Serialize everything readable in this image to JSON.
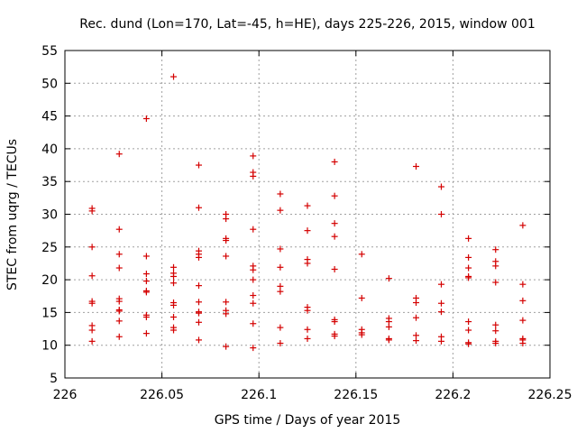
{
  "chart_data": {
    "type": "scatter",
    "title": "Rec. dund (Lon=170, Lat=-45, h=HE), days 225-226, 2015, window 001",
    "xlabel": "GPS time / Days of year 2015",
    "ylabel": "STEC from uqrg / TECUs",
    "xlim": [
      226,
      226.25
    ],
    "ylim": [
      5,
      55
    ],
    "x_ticks": [
      226,
      226.05,
      226.1,
      226.15,
      226.2,
      226.25
    ],
    "x_tick_labels": [
      "226",
      "226.05",
      "226.1",
      "226.15",
      "226.2",
      "226.25"
    ],
    "y_ticks": [
      5,
      10,
      15,
      20,
      25,
      30,
      35,
      40,
      45,
      50,
      55
    ],
    "y_tick_labels": [
      "5",
      "10",
      "15",
      "20",
      "25",
      "30",
      "35",
      "40",
      "45",
      "50",
      "55"
    ],
    "grid": true,
    "marker": "plus",
    "color": "#d40000",
    "series": [
      {
        "name": "STEC",
        "points": [
          [
            226.014,
            30.9
          ],
          [
            226.014,
            30.5
          ],
          [
            226.014,
            25.0
          ],
          [
            226.014,
            20.6
          ],
          [
            226.014,
            16.7
          ],
          [
            226.014,
            16.4
          ],
          [
            226.014,
            13.0
          ],
          [
            226.014,
            12.3
          ],
          [
            226.014,
            10.6
          ],
          [
            226.028,
            39.2
          ],
          [
            226.028,
            27.7
          ],
          [
            226.028,
            23.9
          ],
          [
            226.028,
            21.8
          ],
          [
            226.028,
            17.1
          ],
          [
            226.028,
            16.7
          ],
          [
            226.028,
            15.4
          ],
          [
            226.028,
            15.2
          ],
          [
            226.028,
            13.7
          ],
          [
            226.028,
            11.3
          ],
          [
            226.042,
            44.6
          ],
          [
            226.042,
            23.6
          ],
          [
            226.042,
            20.9
          ],
          [
            226.042,
            19.8
          ],
          [
            226.042,
            18.3
          ],
          [
            226.042,
            18.1
          ],
          [
            226.042,
            14.6
          ],
          [
            226.042,
            14.3
          ],
          [
            226.042,
            11.8
          ],
          [
            226.056,
            51.0
          ],
          [
            226.056,
            21.9
          ],
          [
            226.056,
            21.0
          ],
          [
            226.056,
            20.5
          ],
          [
            226.056,
            19.5
          ],
          [
            226.056,
            16.5
          ],
          [
            226.056,
            16.1
          ],
          [
            226.056,
            14.3
          ],
          [
            226.056,
            12.7
          ],
          [
            226.056,
            12.3
          ],
          [
            226.069,
            37.5
          ],
          [
            226.069,
            31.0
          ],
          [
            226.069,
            24.4
          ],
          [
            226.069,
            23.9
          ],
          [
            226.069,
            23.4
          ],
          [
            226.069,
            19.1
          ],
          [
            226.069,
            16.6
          ],
          [
            226.069,
            15.1
          ],
          [
            226.069,
            14.9
          ],
          [
            226.069,
            13.5
          ],
          [
            226.069,
            10.8
          ],
          [
            226.083,
            30.0
          ],
          [
            226.083,
            29.3
          ],
          [
            226.083,
            26.3
          ],
          [
            226.083,
            26.0
          ],
          [
            226.083,
            23.6
          ],
          [
            226.083,
            16.6
          ],
          [
            226.083,
            15.3
          ],
          [
            226.083,
            14.8
          ],
          [
            226.083,
            9.8
          ],
          [
            226.097,
            38.9
          ],
          [
            226.097,
            36.4
          ],
          [
            226.097,
            35.8
          ],
          [
            226.097,
            27.7
          ],
          [
            226.097,
            22.1
          ],
          [
            226.097,
            21.5
          ],
          [
            226.097,
            20.0
          ],
          [
            226.097,
            17.6
          ],
          [
            226.097,
            16.4
          ],
          [
            226.097,
            13.3
          ],
          [
            226.097,
            9.6
          ],
          [
            226.111,
            33.1
          ],
          [
            226.111,
            30.6
          ],
          [
            226.111,
            24.7
          ],
          [
            226.111,
            21.9
          ],
          [
            226.111,
            19.0
          ],
          [
            226.111,
            18.2
          ],
          [
            226.111,
            12.7
          ],
          [
            226.111,
            10.3
          ],
          [
            226.125,
            31.3
          ],
          [
            226.125,
            27.5
          ],
          [
            226.125,
            23.1
          ],
          [
            226.125,
            22.5
          ],
          [
            226.125,
            15.8
          ],
          [
            226.125,
            15.3
          ],
          [
            226.125,
            12.4
          ],
          [
            226.125,
            11.0
          ],
          [
            226.139,
            38.0
          ],
          [
            226.139,
            32.8
          ],
          [
            226.139,
            28.6
          ],
          [
            226.139,
            26.6
          ],
          [
            226.139,
            21.6
          ],
          [
            226.139,
            13.9
          ],
          [
            226.139,
            13.6
          ],
          [
            226.139,
            11.7
          ],
          [
            226.139,
            11.4
          ],
          [
            226.153,
            23.9
          ],
          [
            226.153,
            17.2
          ],
          [
            226.153,
            12.4
          ],
          [
            226.153,
            11.9
          ],
          [
            226.153,
            11.6
          ],
          [
            226.167,
            20.2
          ],
          [
            226.167,
            14.1
          ],
          [
            226.167,
            13.6
          ],
          [
            226.167,
            12.8
          ],
          [
            226.167,
            11.0
          ],
          [
            226.167,
            10.8
          ],
          [
            226.181,
            37.3
          ],
          [
            226.181,
            17.2
          ],
          [
            226.181,
            16.5
          ],
          [
            226.181,
            14.2
          ],
          [
            226.181,
            11.5
          ],
          [
            226.181,
            10.7
          ],
          [
            226.194,
            34.2
          ],
          [
            226.194,
            30.0
          ],
          [
            226.194,
            19.3
          ],
          [
            226.194,
            16.4
          ],
          [
            226.194,
            15.1
          ],
          [
            226.194,
            11.3
          ],
          [
            226.194,
            10.6
          ],
          [
            226.208,
            26.3
          ],
          [
            226.208,
            23.4
          ],
          [
            226.208,
            21.8
          ],
          [
            226.208,
            20.5
          ],
          [
            226.208,
            20.3
          ],
          [
            226.208,
            13.6
          ],
          [
            226.208,
            12.3
          ],
          [
            226.208,
            10.4
          ],
          [
            226.208,
            10.2
          ],
          [
            226.222,
            24.6
          ],
          [
            226.222,
            22.8
          ],
          [
            226.222,
            22.1
          ],
          [
            226.222,
            19.6
          ],
          [
            226.222,
            13.1
          ],
          [
            226.222,
            12.2
          ],
          [
            226.222,
            10.6
          ],
          [
            226.222,
            10.3
          ],
          [
            226.236,
            28.3
          ],
          [
            226.236,
            19.3
          ],
          [
            226.236,
            16.8
          ],
          [
            226.236,
            13.8
          ],
          [
            226.236,
            11.0
          ],
          [
            226.236,
            10.8
          ],
          [
            226.236,
            10.3
          ]
        ]
      }
    ]
  }
}
